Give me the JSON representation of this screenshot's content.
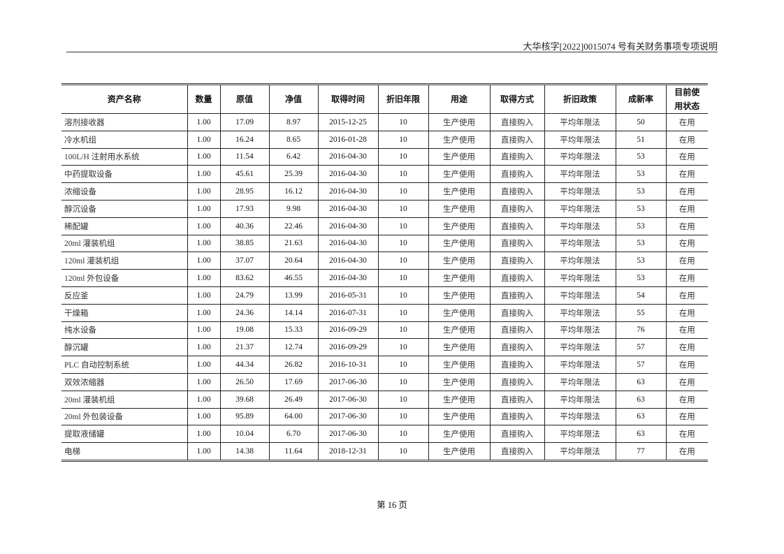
{
  "header": {
    "title": "大华核字[2022]0015074 号有关财务事项专项说明"
  },
  "table": {
    "columns": [
      "资产名称",
      "数量",
      "原值",
      "净值",
      "取得时间",
      "折旧年限",
      "用途",
      "取得方式",
      "折旧政策",
      "成新率",
      "目前使用状态"
    ],
    "rows": [
      [
        "溶剂接收器",
        "1.00",
        "17.09",
        "8.97",
        "2015-12-25",
        "10",
        "生产使用",
        "直接购入",
        "平均年限法",
        "50",
        "在用"
      ],
      [
        "冷水机组",
        "1.00",
        "16.24",
        "8.65",
        "2016-01-28",
        "10",
        "生产使用",
        "直接购入",
        "平均年限法",
        "51",
        "在用"
      ],
      [
        "100L/H 注射用水系统",
        "1.00",
        "11.54",
        "6.42",
        "2016-04-30",
        "10",
        "生产使用",
        "直接购入",
        "平均年限法",
        "53",
        "在用"
      ],
      [
        "中药提取设备",
        "1.00",
        "45.61",
        "25.39",
        "2016-04-30",
        "10",
        "生产使用",
        "直接购入",
        "平均年限法",
        "53",
        "在用"
      ],
      [
        "浓缩设备",
        "1.00",
        "28.95",
        "16.12",
        "2016-04-30",
        "10",
        "生产使用",
        "直接购入",
        "平均年限法",
        "53",
        "在用"
      ],
      [
        "醇沉设备",
        "1.00",
        "17.93",
        "9.98",
        "2016-04-30",
        "10",
        "生产使用",
        "直接购入",
        "平均年限法",
        "53",
        "在用"
      ],
      [
        "稀配罐",
        "1.00",
        "40.36",
        "22.46",
        "2016-04-30",
        "10",
        "生产使用",
        "直接购入",
        "平均年限法",
        "53",
        "在用"
      ],
      [
        "20ml 灌装机组",
        "1.00",
        "38.85",
        "21.63",
        "2016-04-30",
        "10",
        "生产使用",
        "直接购入",
        "平均年限法",
        "53",
        "在用"
      ],
      [
        "120ml 灌装机组",
        "1.00",
        "37.07",
        "20.64",
        "2016-04-30",
        "10",
        "生产使用",
        "直接购入",
        "平均年限法",
        "53",
        "在用"
      ],
      [
        "120ml 外包设备",
        "1.00",
        "83.62",
        "46.55",
        "2016-04-30",
        "10",
        "生产使用",
        "直接购入",
        "平均年限法",
        "53",
        "在用"
      ],
      [
        "反应釜",
        "1.00",
        "24.79",
        "13.99",
        "2016-05-31",
        "10",
        "生产使用",
        "直接购入",
        "平均年限法",
        "54",
        "在用"
      ],
      [
        "干燥箱",
        "1.00",
        "24.36",
        "14.14",
        "2016-07-31",
        "10",
        "生产使用",
        "直接购入",
        "平均年限法",
        "55",
        "在用"
      ],
      [
        "纯水设备",
        "1.00",
        "19.08",
        "15.33",
        "2016-09-29",
        "10",
        "生产使用",
        "直接购入",
        "平均年限法",
        "76",
        "在用"
      ],
      [
        "醇沉罐",
        "1.00",
        "21.37",
        "12.74",
        "2016-09-29",
        "10",
        "生产使用",
        "直接购入",
        "平均年限法",
        "57",
        "在用"
      ],
      [
        "PLC 自动控制系统",
        "1.00",
        "44.34",
        "26.82",
        "2016-10-31",
        "10",
        "生产使用",
        "直接购入",
        "平均年限法",
        "57",
        "在用"
      ],
      [
        "双效浓缩器",
        "1.00",
        "26.50",
        "17.69",
        "2017-06-30",
        "10",
        "生产使用",
        "直接购入",
        "平均年限法",
        "63",
        "在用"
      ],
      [
        "20ml 灌装机组",
        "1.00",
        "39.68",
        "26.49",
        "2017-06-30",
        "10",
        "生产使用",
        "直接购入",
        "平均年限法",
        "63",
        "在用"
      ],
      [
        "20ml 外包装设备",
        "1.00",
        "95.89",
        "64.00",
        "2017-06-30",
        "10",
        "生产使用",
        "直接购入",
        "平均年限法",
        "63",
        "在用"
      ],
      [
        "提取液储罐",
        "1.00",
        "10.04",
        "6.70",
        "2017-06-30",
        "10",
        "生产使用",
        "直接购入",
        "平均年限法",
        "63",
        "在用"
      ],
      [
        "电梯",
        "1.00",
        "14.38",
        "11.64",
        "2018-12-31",
        "10",
        "生产使用",
        "直接购入",
        "平均年限法",
        "77",
        "在用"
      ]
    ]
  },
  "footer": {
    "page": "第 16 页"
  }
}
